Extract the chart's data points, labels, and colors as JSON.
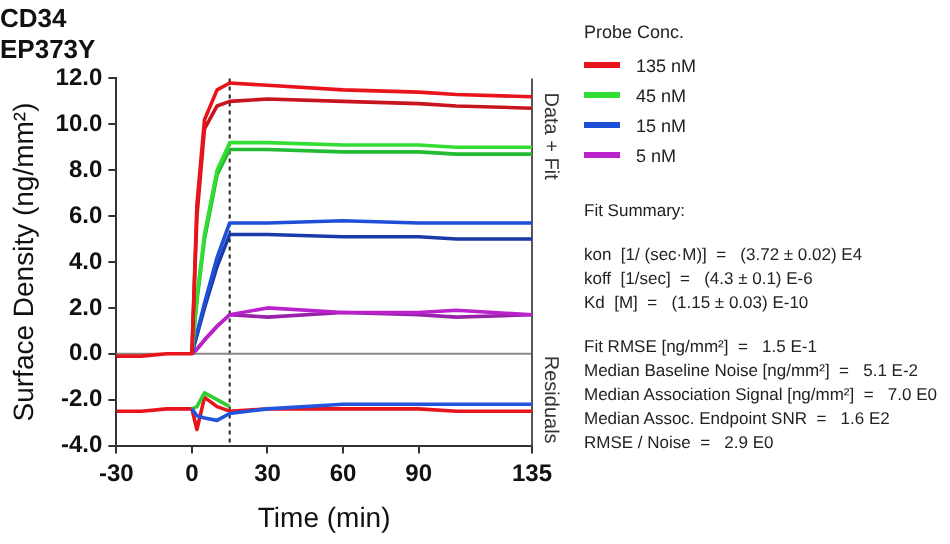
{
  "chart_data": {
    "type": "line",
    "title": "CD34",
    "subtitle": "EP373Y",
    "xlabel": "Time (min)",
    "ylabel": "Surface Density (ng/mm²)",
    "legend_title": "Probe Conc.",
    "x": [
      -30,
      -20,
      -10,
      0,
      2,
      5,
      10,
      15,
      30,
      60,
      90,
      105,
      135
    ],
    "xlim": [
      -30,
      135
    ],
    "xticks": [
      -30,
      0,
      30,
      60,
      90,
      135
    ],
    "ylim": [
      -4,
      12
    ],
    "yticks": [
      {
        "value": -4,
        "label": "-4.0"
      },
      {
        "value": -2,
        "label": "-2.0"
      },
      {
        "value": 0,
        "label": "0.0"
      },
      {
        "value": 2,
        "label": "2.0"
      },
      {
        "value": 4,
        "label": "4.0"
      },
      {
        "value": 6,
        "label": "6.0"
      },
      {
        "value": 8,
        "label": "8.0"
      },
      {
        "value": 10,
        "label": "10.0"
      },
      {
        "value": 12,
        "label": "12.0"
      }
    ],
    "grid": false,
    "legend": "right",
    "marker": "none",
    "line_style": "solid",
    "series": [
      {
        "name": "135 nM",
        "color": "#e8141c",
        "values": [
          -0.1,
          -0.1,
          0,
          0,
          6.5,
          10.2,
          11.5,
          11.8,
          11.7,
          11.5,
          11.4,
          11.3,
          11.2
        ]
      },
      {
        "color": "#c8141c",
        "values": [
          null,
          null,
          null,
          0,
          6,
          9.8,
          10.8,
          11.0,
          11.1,
          11.0,
          10.9,
          10.8,
          10.7
        ]
      },
      {
        "name": "45 nM",
        "color": "#33dd33",
        "values": [
          null,
          null,
          null,
          0,
          2.5,
          5.2,
          8.0,
          9.2,
          9.2,
          9.1,
          9.1,
          9.0,
          9.0
        ]
      },
      {
        "color": "#22bb33",
        "values": [
          null,
          null,
          null,
          0,
          2.3,
          5.0,
          7.8,
          8.9,
          8.9,
          8.8,
          8.8,
          8.7,
          8.7
        ]
      },
      {
        "name": "15 nM",
        "color": "#1f4fd6",
        "values": [
          null,
          null,
          null,
          0,
          0.9,
          2.2,
          4.2,
          5.7,
          5.7,
          5.8,
          5.7,
          5.7,
          5.7
        ]
      },
      {
        "color": "#1a3aa8",
        "values": [
          null,
          null,
          null,
          0,
          0.8,
          2.0,
          3.8,
          5.2,
          5.2,
          5.1,
          5.1,
          5.0,
          5.0
        ]
      },
      {
        "name": "5 nM",
        "color": "#bb22cc",
        "values": [
          null,
          null,
          null,
          0,
          0.2,
          0.6,
          1.2,
          1.7,
          2.0,
          1.8,
          1.8,
          1.9,
          1.7
        ]
      },
      {
        "color": "#9922aa",
        "values": [
          null,
          null,
          null,
          0,
          0.2,
          0.6,
          1.2,
          1.7,
          1.6,
          1.8,
          1.7,
          1.6,
          1.7
        ]
      },
      {
        "color": "#2255dd",
        "values": [
          null,
          null,
          null,
          -2.4,
          -2.7,
          -2.8,
          -2.9,
          -2.6,
          -2.4,
          -2.2,
          -2.2,
          -2.2,
          -2.2
        ]
      },
      {
        "color": "#33cc33",
        "values": [
          null,
          null,
          null,
          -2.4,
          -2.3,
          -1.7,
          -2.0,
          -2.3,
          null,
          null,
          null,
          null,
          null
        ]
      },
      {
        "color": "#e8141c",
        "values": [
          -2.5,
          -2.5,
          -2.4,
          -2.4,
          -3.3,
          -1.9,
          -2.3,
          -2.5,
          -2.4,
          -2.4,
          -2.4,
          -2.5,
          -2.5
        ]
      }
    ],
    "ref_lines": [
      {
        "axis": "x",
        "value": 15,
        "color": "#222222",
        "line_style": "dotted"
      },
      {
        "axis": "y",
        "value": 0,
        "color": "#888888",
        "line_style": "solid"
      }
    ],
    "annotations": [
      "Data + Fit",
      "Residuals",
      "Fit Summary:",
      "kon  [1/ (sec·M)]  =   (3.72 ± 0.02) E4",
      "koff  [1/sec]  =   (4.3 ± 0.1) E-6",
      "Kd  [M]  =   (1.15 ± 0.03) E-10",
      "Fit RMSE [ng/mm²]  =   1.5 E-1",
      "Median Baseline Noise [ng/mm²]  =   5.1 E-2",
      "Median Association Signal [ng/mm²]  =   7.0 E0",
      "Median Assoc. Endpoint SNR  =   1.6 E2",
      "RMSE / Noise  =   2.9 E0"
    ]
  }
}
